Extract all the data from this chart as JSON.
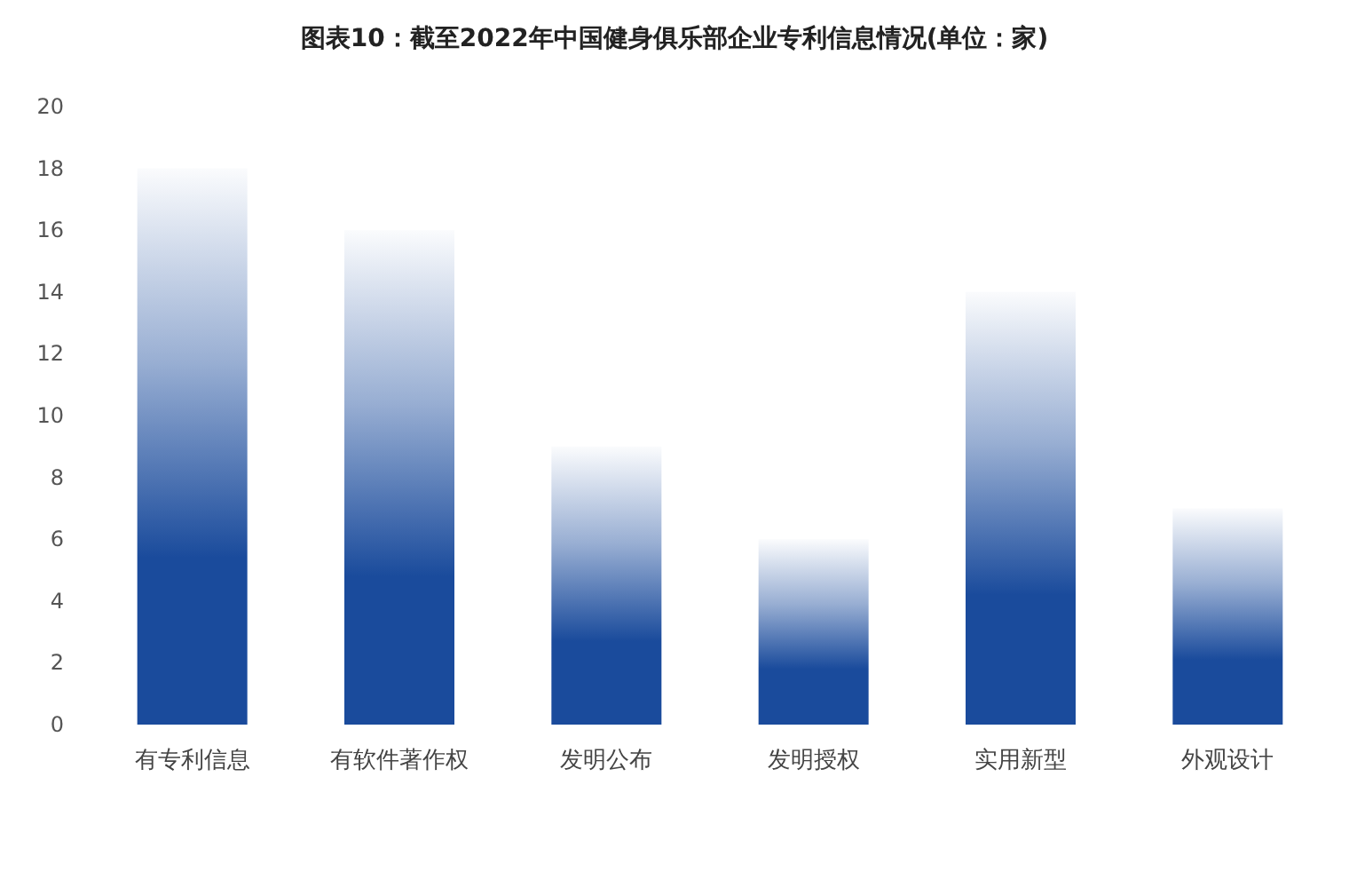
{
  "chart_data": {
    "type": "bar",
    "title": "图表10：截至2022年中国健身俱乐部企业专利信息情况(单位：家)",
    "categories": [
      "有专利信息",
      "有软件著作权",
      "发明公布",
      "发明授权",
      "实用新型",
      "外观设计"
    ],
    "values": [
      18,
      16,
      9,
      6,
      14,
      7
    ],
    "color": "#1a4b9c",
    "ylim": [
      0,
      20
    ],
    "yticks": [
      0,
      2,
      4,
      6,
      8,
      10,
      12,
      14,
      16,
      18,
      20
    ],
    "grid": false
  }
}
